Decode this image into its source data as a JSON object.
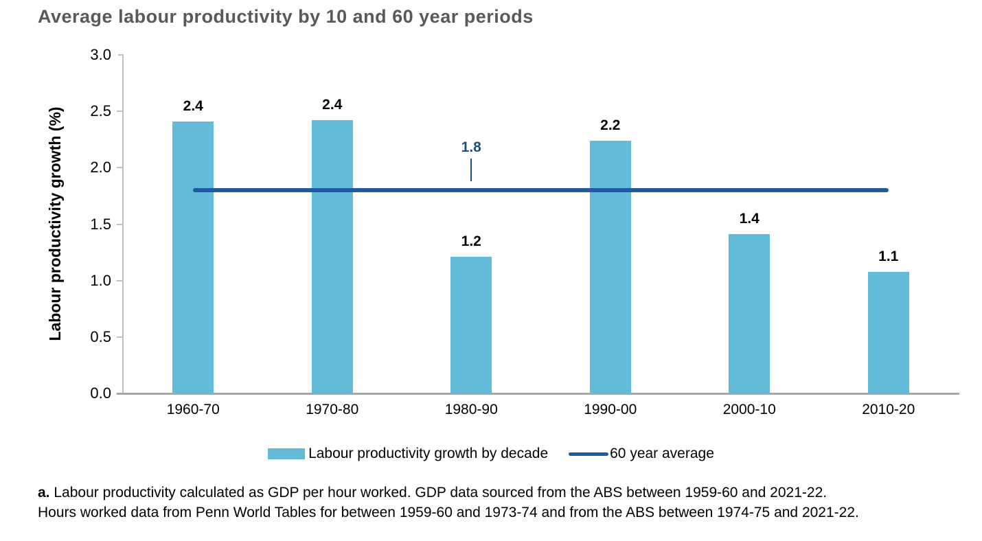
{
  "title": {
    "text": "Average labour productivity by 10 and 60 year periods",
    "color": "#595959"
  },
  "chart_data": {
    "type": "bar",
    "title": "Average labour productivity by 10 and 60 year periods",
    "xlabel": "",
    "ylabel": "Labour productivity growth (%)",
    "ylim": [
      0,
      3.0
    ],
    "yticks": [
      "0.0",
      "0.5",
      "1.0",
      "1.5",
      "2.0",
      "2.5",
      "3.0"
    ],
    "grid": false,
    "legend_position": "bottom",
    "categories": [
      "1960-70",
      "1970-80",
      "1980-90",
      "1990-00",
      "2000-10",
      "2010-20"
    ],
    "series": [
      {
        "name": "Labour productivity growth by decade",
        "type": "bar",
        "color": "#62BCD9",
        "values": [
          2.41,
          2.42,
          1.21,
          2.24,
          1.41,
          1.08
        ],
        "value_labels": [
          "2.4",
          "2.4",
          "1.2",
          "2.2",
          "1.4",
          "1.1"
        ]
      },
      {
        "name": "60 year average",
        "type": "line",
        "color": "#1F5AA8",
        "value": 1.8,
        "value_label": "1.8",
        "label_color": "#1F4E79",
        "label_at_category_index": 2
      }
    ]
  },
  "axes": {
    "axis_line_color": "#BFBFBF",
    "baseline_color": "#A6A6A6",
    "tick_color": "#BFBFBF"
  },
  "footnote": {
    "prefix": "a.",
    "line1": " Labour productivity calculated as GDP per hour worked. GDP data sourced from the ABS between 1959-60 and 2021-22.",
    "line2": "Hours worked data from Penn World Tables for between 1959-60 and 1973-74 and from the ABS between 1974-75 and 2021-22."
  }
}
